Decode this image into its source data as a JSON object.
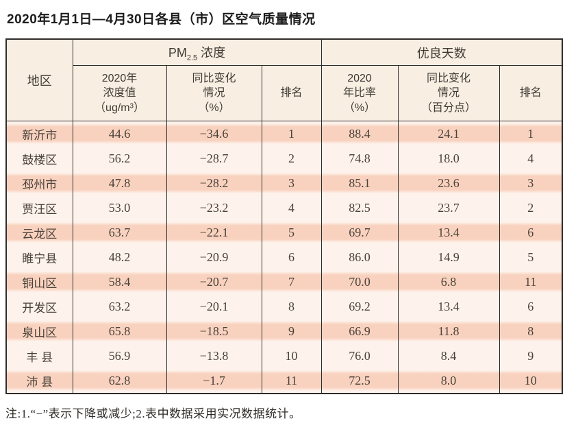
{
  "page": {
    "title": "2020年1月1日—4月30日各县（市）区空气质量情况",
    "note": "注:1.“−”表示下降或减少;2.表中数据采用实况数据统计。"
  },
  "colors": {
    "stripe_salmon": "#f9d2bf",
    "row_light": "#fdf3ec",
    "header_cream": "#f8eee2",
    "border_dark": "#2f2d2b",
    "text_dark": "#4a423a"
  },
  "table": {
    "corner_header": "地区",
    "pm_group": {
      "prefix": "PM",
      "sub": "2.5",
      "suffix": " 浓度"
    },
    "good_group": "优良天数",
    "sub_headers": [
      {
        "lines": [
          "2020年",
          "浓度值",
          "（ug/m³）"
        ]
      },
      {
        "lines": [
          "同比变化",
          "情况",
          "（%）"
        ]
      },
      {
        "lines": [
          "排名"
        ]
      },
      {
        "lines": [
          "2020",
          "年比率",
          "（%）"
        ]
      },
      {
        "lines": [
          "同比变化",
          "情况",
          "（百分点）"
        ]
      },
      {
        "lines": [
          "排名"
        ]
      }
    ],
    "rows": [
      {
        "region": "新沂市",
        "pm_value": "44.6",
        "pm_change": "−34.6",
        "pm_rank": "1",
        "good_rate": "88.4",
        "good_change": "24.1",
        "good_rank": "1"
      },
      {
        "region": "鼓楼区",
        "pm_value": "56.2",
        "pm_change": "−28.7",
        "pm_rank": "2",
        "good_rate": "74.8",
        "good_change": "18.0",
        "good_rank": "4"
      },
      {
        "region": "邳州市",
        "pm_value": "47.8",
        "pm_change": "−28.2",
        "pm_rank": "3",
        "good_rate": "85.1",
        "good_change": "23.6",
        "good_rank": "3"
      },
      {
        "region": "贾汪区",
        "pm_value": "53.0",
        "pm_change": "−23.2",
        "pm_rank": "4",
        "good_rate": "82.5",
        "good_change": "23.7",
        "good_rank": "2"
      },
      {
        "region": "云龙区",
        "pm_value": "63.7",
        "pm_change": "−22.1",
        "pm_rank": "5",
        "good_rate": "69.7",
        "good_change": "13.4",
        "good_rank": "6"
      },
      {
        "region": "睢宁县",
        "pm_value": "48.2",
        "pm_change": "−20.9",
        "pm_rank": "6",
        "good_rate": "86.0",
        "good_change": "14.9",
        "good_rank": "5"
      },
      {
        "region": "铜山区",
        "pm_value": "58.4",
        "pm_change": "−20.7",
        "pm_rank": "7",
        "good_rate": "70.0",
        "good_change": "6.8",
        "good_rank": "11"
      },
      {
        "region": "开发区",
        "pm_value": "63.2",
        "pm_change": "−20.1",
        "pm_rank": "8",
        "good_rate": "69.2",
        "good_change": "13.4",
        "good_rank": "6"
      },
      {
        "region": "泉山区",
        "pm_value": "65.8",
        "pm_change": "−18.5",
        "pm_rank": "9",
        "good_rate": "66.9",
        "good_change": "11.8",
        "good_rank": "8"
      },
      {
        "region": "丰 县",
        "pm_value": "56.9",
        "pm_change": "−13.8",
        "pm_rank": "10",
        "good_rate": "76.0",
        "good_change": "8.4",
        "good_rank": "9"
      },
      {
        "region": "沛 县",
        "pm_value": "62.8",
        "pm_change": "−1.7",
        "pm_rank": "11",
        "good_rate": "72.5",
        "good_change": "8.0",
        "good_rank": "10"
      }
    ]
  },
  "chart_data": {
    "type": "table",
    "title": "2020年1月1日—4月30日各县（市）区空气质量情况",
    "column_groups": [
      "地区",
      "PM2.5浓度",
      "优良天数"
    ],
    "columns": [
      "地区",
      "PM2.5浓度 2020年浓度值（ug/m³）",
      "PM2.5浓度 同比变化情况（%）",
      "PM2.5浓度 排名",
      "优良天数 2020年比率（%）",
      "优良天数 同比变化情况（百分点）",
      "优良天数 排名"
    ],
    "rows": [
      [
        "新沂市",
        44.6,
        -34.6,
        1,
        88.4,
        24.1,
        1
      ],
      [
        "鼓楼区",
        56.2,
        -28.7,
        2,
        74.8,
        18.0,
        4
      ],
      [
        "邳州市",
        47.8,
        -28.2,
        3,
        85.1,
        23.6,
        3
      ],
      [
        "贾汪区",
        53.0,
        -23.2,
        4,
        82.5,
        23.7,
        2
      ],
      [
        "云龙区",
        63.7,
        -22.1,
        5,
        69.7,
        13.4,
        6
      ],
      [
        "睢宁县",
        48.2,
        -20.9,
        6,
        86.0,
        14.9,
        5
      ],
      [
        "铜山区",
        58.4,
        -20.7,
        7,
        70.0,
        6.8,
        11
      ],
      [
        "开发区",
        63.2,
        -20.1,
        8,
        69.2,
        13.4,
        6
      ],
      [
        "泉山区",
        65.8,
        -18.5,
        9,
        66.9,
        11.8,
        8
      ],
      [
        "丰县",
        56.9,
        -13.8,
        10,
        76.0,
        8.4,
        9
      ],
      [
        "沛县",
        62.8,
        -1.7,
        11,
        72.5,
        8.0,
        10
      ]
    ],
    "note": "注:1.“−”表示下降或减少;2.表中数据采用实况数据统计。"
  }
}
